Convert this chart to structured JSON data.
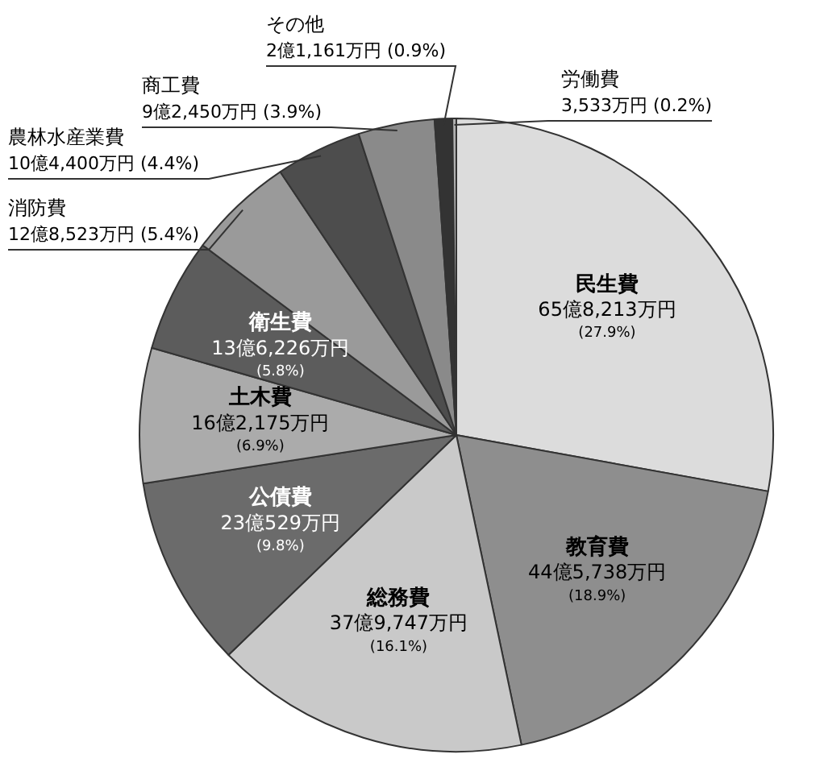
{
  "chart_data": {
    "type": "pie",
    "categories": [
      "民生費",
      "教育費",
      "総務費",
      "公債費",
      "土木費",
      "衛生費",
      "消防費",
      "農林水産業費",
      "商工費",
      "その他",
      "労働費"
    ],
    "values": [
      27.9,
      18.9,
      16.1,
      9.8,
      6.9,
      5.8,
      5.4,
      4.4,
      3.9,
      0.9,
      0.2
    ],
    "colors": [
      "#dcdcdc",
      "#8e8e8e",
      "#c9c9c9",
      "#6b6b6b",
      "#ababab",
      "#5c5c5c",
      "#9a9a9a",
      "#4d4d4d",
      "#8a8a8a",
      "#333333",
      "#b0b0b0"
    ],
    "value_labels": [
      "65億8,213万円 (27.9%)",
      "44億5,738万円 (18.9%)",
      "37億9,747万円 (16.1%)",
      "23億529万円 (9.8%)",
      "16億2,175万円 (6.9%)",
      "13億6,226万円 (5.8%)",
      "12億8,523万円 (5.4%)",
      "10億4,400万円 (4.4%)",
      "9億2,450万円 (3.9%)",
      "2億1,161万円 (0.9%)",
      "3,533万円 (0.2%)"
    ],
    "legend": false
  }
}
